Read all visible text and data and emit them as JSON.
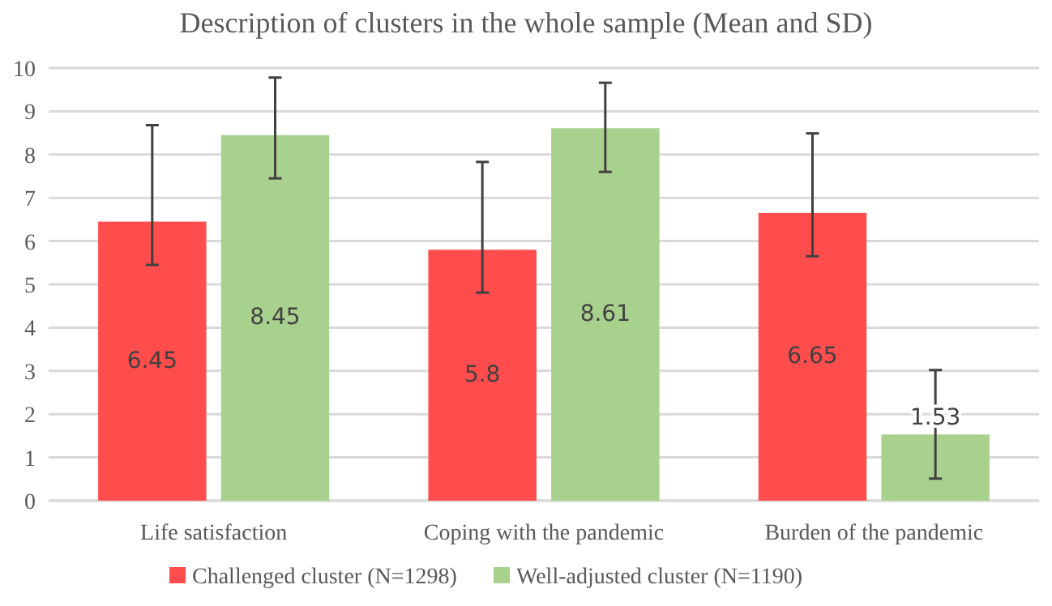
{
  "chart_data": {
    "type": "bar",
    "title": "Description of clusters in the whole sample (Mean and SD)",
    "categories": [
      "Life satisfaction",
      "Coping with the pandemic",
      "Burden of the pandemic"
    ],
    "series": [
      {
        "name": "Challenged cluster (N=1298)",
        "color": "#ff4d4d",
        "values": [
          6.45,
          5.8,
          6.65
        ],
        "errors": [
          [
            5.45,
            8.68
          ],
          [
            4.81,
            7.83
          ],
          [
            5.65,
            8.49
          ]
        ]
      },
      {
        "name": "Well-adjusted cluster (N=1190)",
        "color": "#a9d18e",
        "values": [
          8.45,
          8.61,
          1.53
        ],
        "errors": [
          [
            7.45,
            9.78
          ],
          [
            7.6,
            9.66
          ],
          [
            0.51,
            3.02
          ]
        ]
      }
    ],
    "ylim": [
      0,
      10
    ],
    "yticks": [
      0,
      1,
      2,
      3,
      4,
      5,
      6,
      7,
      8,
      9,
      10
    ],
    "grid": "y",
    "legend": "bottom",
    "data_labels": true
  }
}
